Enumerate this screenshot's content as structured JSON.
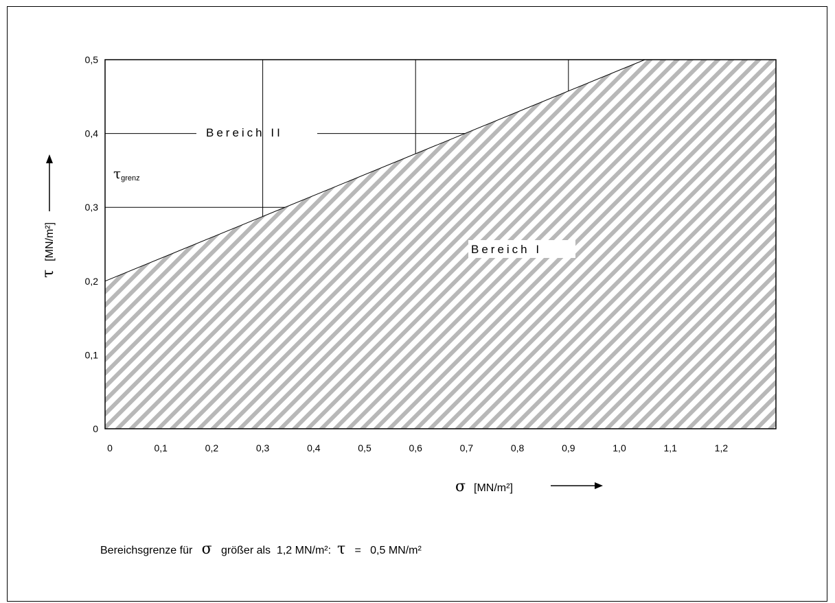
{
  "chart_data": {
    "type": "area",
    "x_axis": {
      "symbol": "σ",
      "unit": "[MN/m²]",
      "ticks": [
        "0",
        "0,1",
        "0,2",
        "0,3",
        "0,4",
        "0,5",
        "0,6",
        "0,7",
        "0,8",
        "0,9",
        "1,0",
        "1,1",
        "1,2"
      ],
      "xlim": [
        0,
        1.3
      ]
    },
    "y_axis": {
      "symbol": "τ",
      "unit": "[MN/m²]",
      "ticks": [
        "0",
        "0,1",
        "0,2",
        "0,3",
        "0,4",
        "0,5"
      ],
      "ylim": [
        0,
        0.5
      ]
    },
    "boundary": {
      "x": [
        0,
        1.05,
        1.3
      ],
      "y": [
        0.2,
        0.5,
        0.5
      ]
    },
    "boundary_label": {
      "symbol": "τ",
      "subscript": "grenz"
    },
    "regions": [
      {
        "label": "Bereich I",
        "fill": "hatched-below-boundary"
      },
      {
        "label": "Bereich II",
        "fill": "above-boundary"
      }
    ],
    "grid_lines": {
      "vertical_x": [
        0.3,
        0.6,
        0.9
      ],
      "horizontal_y": [
        0.3,
        0.4
      ]
    },
    "hatch_color": "#b8b8b8"
  },
  "note": {
    "prefix": "Bereichsgrenze für",
    "sigma": "σ",
    "middle": "größer als  1,2 MN/m²:",
    "tau": "τ",
    "suffix": "=   0,5 MN/m²"
  }
}
